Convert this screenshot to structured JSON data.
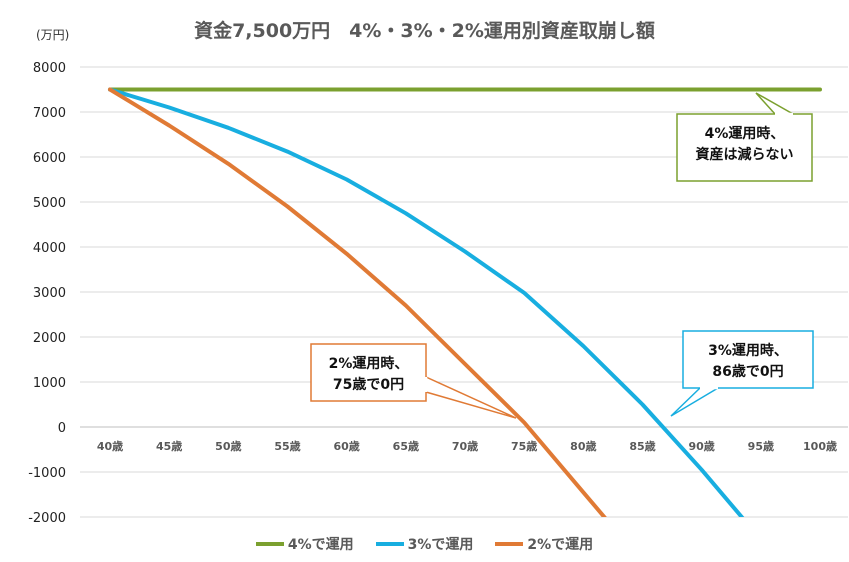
{
  "chart_data": {
    "type": "line",
    "title": "資金7,500万円　4%・3%・2%運用別資産取崩し額",
    "unit_label": "(万円)",
    "x": [
      "40歳",
      "45歳",
      "50歳",
      "55歳",
      "60歳",
      "65歳",
      "70歳",
      "75歳",
      "80歳",
      "85歳",
      "90歳",
      "95歳",
      "100歳"
    ],
    "ylim": [
      -2000,
      8000
    ],
    "yticks": [
      8000,
      7000,
      6000,
      5000,
      4000,
      3000,
      2000,
      1000,
      0,
      -1000,
      -2000
    ],
    "grid": true,
    "legend_position": "bottom",
    "series": [
      {
        "name": "4%で運用",
        "color": "#7BA02F",
        "values": [
          7500,
          7500,
          7500,
          7500,
          7500,
          7500,
          7500,
          7500,
          7500,
          7500,
          7500,
          7500,
          7500
        ]
      },
      {
        "name": "3%で運用",
        "color": "#18AEE0",
        "values": [
          7500,
          7100,
          6650,
          6120,
          5500,
          4750,
          3900,
          2980,
          1800,
          500,
          -950,
          -2500,
          null
        ]
      },
      {
        "name": "2%で運用",
        "color": "#E07A35",
        "values": [
          7500,
          6700,
          5850,
          4900,
          3850,
          2700,
          1400,
          100,
          -1450,
          -3000,
          null,
          null,
          null
        ]
      }
    ]
  },
  "annotations": [
    {
      "id": "4pct",
      "lines": [
        "4%運用時、",
        "資産は減らない"
      ],
      "color": "#7BA02F"
    },
    {
      "id": "3pct",
      "lines": [
        "3%運用時、",
        "86歳で0円"
      ],
      "color": "#18AEE0"
    },
    {
      "id": "2pct",
      "lines": [
        "2%運用時、",
        "75歳で0円"
      ],
      "color": "#E07A35"
    }
  ]
}
